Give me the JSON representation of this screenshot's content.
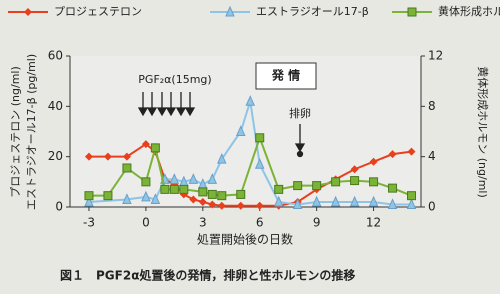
{
  "chart_data": {
    "type": "line",
    "caption": "図１　PGF2α処置後の発情，排卵と性ホルモンの推移",
    "x_label": "処置開始後の日数",
    "y_labels": [
      "プロジェステロン (ng/ml)",
      "エストラジオール17-β (pg/ml)"
    ],
    "y2_label": "黄体形成ホルモン (ng/ml)",
    "annotations": [
      "PGF₂α(15mg)",
      "発 情",
      "排卵"
    ],
    "xlim": [
      -4,
      14.5
    ],
    "xticks": [
      -3,
      0,
      3,
      6,
      9,
      12
    ],
    "ylim": [
      0,
      60
    ],
    "yticks": [
      0,
      20,
      40,
      60
    ],
    "y2lim": [
      0,
      12
    ],
    "y2ticks": [
      0,
      4,
      8,
      12
    ],
    "series": [
      {
        "name": "プロジェステロン",
        "color": "#e8401c",
        "marker": "diamond",
        "x": [
          -3,
          -2,
          -1,
          0,
          0.5,
          1,
          1.5,
          2,
          2.5,
          3,
          3.5,
          4,
          5,
          6,
          7,
          8,
          9,
          10,
          11,
          12,
          13,
          14
        ],
        "values": [
          20,
          20,
          20,
          25,
          22,
          11,
          9,
          5,
          3,
          2,
          1,
          0.5,
          0.5,
          0.5,
          0.5,
          2,
          7,
          11,
          15,
          18,
          21,
          22
        ]
      },
      {
        "name": "エストラジオール17-β",
        "color": "#8ec4e6",
        "marker": "triangle",
        "x": [
          -3,
          -1,
          0,
          0.5,
          1,
          1.5,
          2,
          2.5,
          3,
          3.5,
          4,
          5,
          5.5,
          6,
          7,
          8,
          9,
          10,
          11,
          12,
          13,
          14
        ],
        "values": [
          2,
          3,
          4,
          3,
          11,
          11,
          10,
          11,
          9,
          11,
          19,
          30,
          42,
          17,
          2,
          1,
          2,
          2,
          2,
          2,
          1,
          1
        ]
      },
      {
        "name": "黄体形成ホルモン",
        "color": "#7ab335",
        "marker": "square",
        "axis": "y2",
        "x": [
          -3,
          -2,
          -1,
          0,
          0.5,
          1,
          1.5,
          2,
          3,
          3.5,
          4,
          5,
          6,
          7,
          8,
          9,
          10,
          11,
          12,
          13,
          14
        ],
        "values": [
          0.9,
          0.9,
          3.1,
          2,
          4.7,
          1.4,
          1.4,
          1.4,
          1.2,
          1,
          0.9,
          1,
          5.5,
          1.4,
          1.7,
          1.7,
          2,
          2.1,
          2,
          1.5,
          0.9
        ]
      }
    ]
  }
}
